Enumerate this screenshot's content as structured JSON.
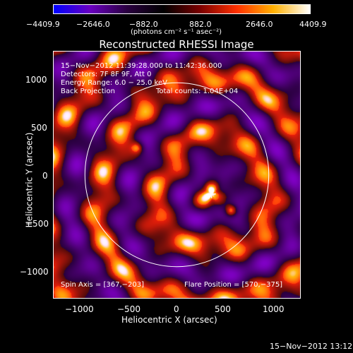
{
  "colorbar": {
    "ticks": [
      "−4409.9",
      "−2646.0",
      "−882.0",
      "882.0",
      "2646.0",
      "4409.9"
    ],
    "unit": "(photons cm⁻² s⁻¹ asec⁻²)",
    "min": -4409.9,
    "max": 4409.9,
    "colors": [
      "#0000ff",
      "#6a00c0",
      "#2a0040",
      "#000000",
      "#7a0000",
      "#ff3000",
      "#ffb000",
      "#ffffff"
    ]
  },
  "title": "Reconstructed RHESSI Image",
  "info": {
    "time_range": "15−Nov−2012 11:39:28.000 to 11:42:36.000",
    "detectors": "Detectors: 7F 8F 9F, Att 0",
    "energy": "Energy Range: 6.0 − 25.0 keV",
    "method": "Back Projection",
    "counts": "Total counts: 1.04E+04",
    "spin_axis": "Spin Axis = [367,−203]",
    "flare_position": "Flare Position = [570,−375]"
  },
  "axes": {
    "xlabel": "Heliocentric X (arcsec)",
    "ylabel": "Heliocentric Y (arcsec)",
    "xticks": [
      "−1000",
      "−500",
      "0",
      "500",
      "1000"
    ],
    "yticks": [
      "1000",
      "500",
      "0",
      "−500",
      "−1000"
    ],
    "xlim": [
      -1300,
      1300
    ],
    "ylim": [
      -1300,
      1300
    ]
  },
  "markers": {
    "solar_limb_radius_arcsec": 970,
    "cross_position_arcsec": [
      367,
      -203
    ]
  },
  "footer": {
    "timestamp": "15−Nov−2012 13:12"
  }
}
